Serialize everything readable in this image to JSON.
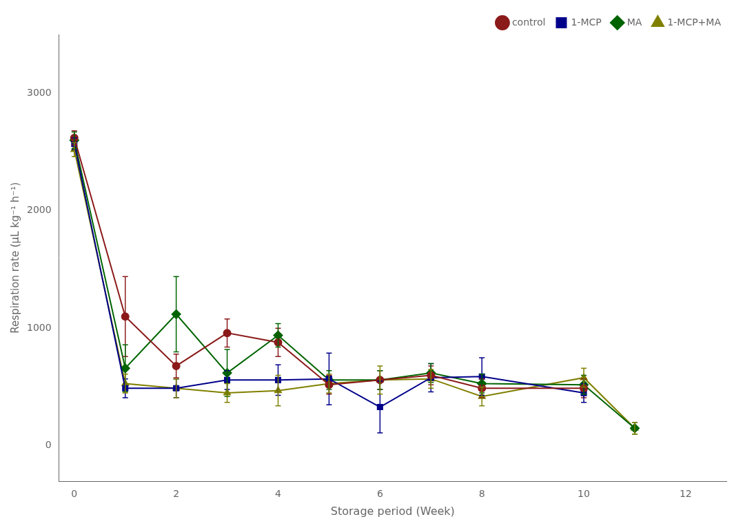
{
  "chart_data": {
    "type": "line",
    "xlabel": "Storage period (Week)",
    "ylabel": "Respiration rate (μL kg⁻¹ h⁻¹)",
    "xlim": [
      -0.3,
      12.8
    ],
    "ylim": [
      -300,
      3500
    ],
    "xticks": [
      0,
      2,
      4,
      6,
      8,
      10,
      12
    ],
    "yticks": [
      0,
      1000,
      2000,
      3000
    ],
    "grid": false,
    "legend": "upper right",
    "series": [
      {
        "name": "control",
        "color": "#8B1A1A",
        "marker": "circle",
        "line_style": "solid",
        "x": [
          0,
          1,
          2,
          3,
          4,
          5,
          6,
          7,
          8,
          10
        ],
        "values": [
          2620,
          1100,
          680,
          960,
          880,
          520,
          560,
          600,
          490,
          490
        ],
        "yerr": [
          60,
          340,
          100,
          120,
          120,
          80,
          80,
          80,
          80,
          80
        ]
      },
      {
        "name": "1-MCP",
        "color": "#00008B",
        "marker": "square",
        "line_style": "solid",
        "x": [
          0,
          1,
          2,
          3,
          4,
          5,
          6,
          7,
          8,
          10
        ],
        "values": [
          2570,
          490,
          490,
          560,
          560,
          570,
          330,
          580,
          590,
          450
        ],
        "yerr": [
          50,
          80,
          80,
          80,
          130,
          220,
          220,
          120,
          160,
          80
        ]
      },
      {
        "name": "MA",
        "color": "#006400",
        "marker": "diamond",
        "line_style": "solid",
        "x": [
          0,
          1,
          2,
          3,
          4,
          5,
          6,
          7,
          8,
          10,
          11
        ],
        "values": [
          2600,
          660,
          1120,
          620,
          940,
          560,
          560,
          620,
          530,
          520,
          150
        ],
        "yerr": [
          70,
          200,
          320,
          200,
          100,
          80,
          80,
          80,
          80,
          80,
          50
        ]
      },
      {
        "name": "1-MCP+MA",
        "color": "#808000",
        "marker": "triangle",
        "line_style": "solid",
        "x": [
          0,
          1,
          2,
          3,
          4,
          5,
          6,
          7,
          8,
          10,
          11
        ],
        "values": [
          2520,
          530,
          490,
          450,
          470,
          530,
          560,
          570,
          420,
          580,
          150
        ],
        "yerr": [
          60,
          80,
          80,
          80,
          130,
          80,
          120,
          80,
          80,
          80,
          50
        ]
      }
    ]
  }
}
